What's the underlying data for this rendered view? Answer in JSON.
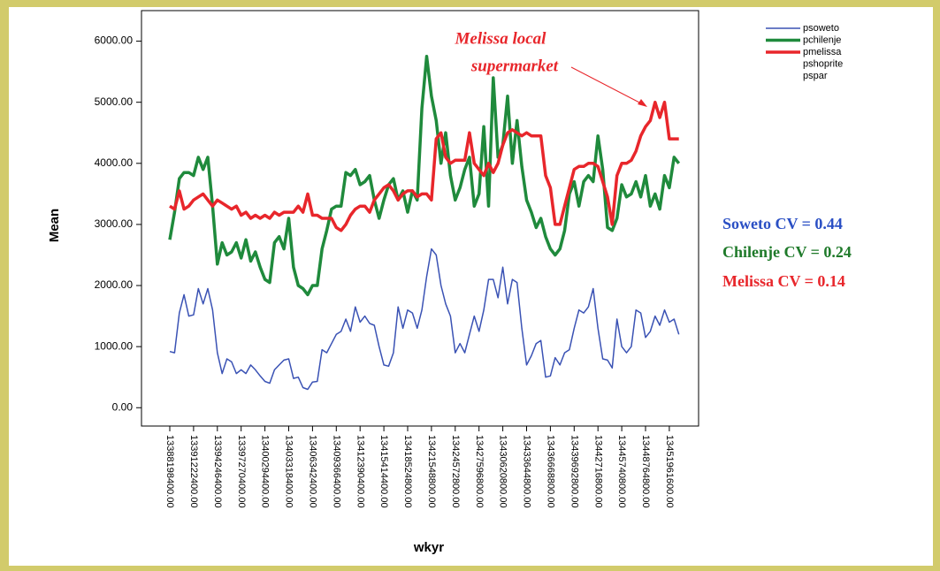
{
  "chart_data": {
    "type": "line",
    "xlabel": "wkyr",
    "ylabel": "Mean",
    "categories": [
      "13388198400.00",
      null,
      null,
      null,
      null,
      "13391222400.00",
      null,
      null,
      null,
      null,
      "13394246400.00",
      null,
      null,
      null,
      null,
      "13397270400.00",
      null,
      null,
      null,
      null,
      "13400294400.00",
      null,
      null,
      null,
      null,
      "13403318400.00",
      null,
      null,
      null,
      null,
      "13406342400.00",
      null,
      null,
      null,
      null,
      "13409366400.00",
      null,
      null,
      null,
      null,
      "13412390400.00",
      null,
      null,
      null,
      null,
      "13415414400.00",
      null,
      null,
      null,
      null,
      "13418524800.00",
      null,
      null,
      null,
      null,
      "13421548800.00",
      null,
      null,
      null,
      null,
      "13424572800.00",
      null,
      null,
      null,
      null,
      "13427596800.00",
      null,
      null,
      null,
      null,
      "13430620800.00",
      null,
      null,
      null,
      null,
      "13433644800.00",
      null,
      null,
      null,
      null,
      "13436668800.00",
      null,
      null,
      null,
      null,
      "13439692800.00",
      null,
      null,
      null,
      null,
      "13442716800.00",
      null,
      null,
      null,
      null,
      "13445740800.00",
      null,
      null,
      null,
      null,
      "13448764800.00",
      null,
      null,
      null,
      null,
      "13451961600.00",
      null,
      null
    ],
    "series": [
      {
        "name": "psoweto",
        "color": "#3a52b4",
        "width": 1.5,
        "values": [
          920,
          900,
          1550,
          1850,
          1500,
          1520,
          1950,
          1700,
          1950,
          1600,
          900,
          560,
          800,
          750,
          560,
          620,
          560,
          700,
          620,
          520,
          430,
          400,
          620,
          700,
          780,
          800,
          480,
          500,
          330,
          300,
          420,
          430,
          950,
          900,
          1050,
          1200,
          1250,
          1450,
          1250,
          1650,
          1400,
          1500,
          1380,
          1350,
          1000,
          700,
          680,
          900,
          1650,
          1300,
          1600,
          1550,
          1300,
          1600,
          2150,
          2600,
          2500,
          2000,
          1700,
          1500,
          900,
          1050,
          900,
          1200,
          1500,
          1250,
          1600,
          2100,
          2100,
          1800,
          2300,
          1700,
          2100,
          2050,
          1300,
          700,
          850,
          1050,
          1100,
          500,
          520,
          820,
          700,
          900,
          950,
          1300,
          1600,
          1550,
          1650,
          1950,
          1300,
          800,
          780,
          650,
          1450,
          1000,
          900,
          1000,
          1600,
          1550,
          1150,
          1250,
          1500,
          1350,
          1600,
          1400,
          1450,
          1200
        ]
      },
      {
        "name": "pchilenje",
        "color": "#1f8a3c",
        "width": 3.5,
        "values": [
          2750,
          3200,
          3750,
          3850,
          3850,
          3800,
          4100,
          3900,
          4100,
          3300,
          2350,
          2700,
          2500,
          2550,
          2700,
          2450,
          2750,
          2400,
          2550,
          2300,
          2100,
          2050,
          2700,
          2800,
          2600,
          3100,
          2300,
          2000,
          1950,
          1850,
          2000,
          2000,
          2600,
          2900,
          3250,
          3300,
          3300,
          3850,
          3800,
          3900,
          3650,
          3700,
          3800,
          3400,
          3100,
          3400,
          3650,
          3750,
          3400,
          3550,
          3200,
          3550,
          3400,
          4900,
          5750,
          5100,
          4700,
          4000,
          4500,
          3800,
          3400,
          3600,
          3900,
          4100,
          3300,
          3500,
          4600,
          3300,
          5400,
          4100,
          4300,
          5100,
          4000,
          4700,
          3950,
          3400,
          3200,
          2950,
          3100,
          2800,
          2600,
          2500,
          2600,
          2900,
          3500,
          3700,
          3300,
          3700,
          3800,
          3700,
          4450,
          3900,
          2950,
          2900,
          3100,
          3650,
          3450,
          3500,
          3700,
          3450,
          3800,
          3300,
          3500,
          3250,
          3800,
          3600,
          4100,
          4000
        ]
      },
      {
        "name": "pmelissa",
        "color": "#e8262b",
        "width": 3.5,
        "values": [
          3300,
          3250,
          3550,
          3250,
          3300,
          3400,
          3450,
          3500,
          3400,
          3300,
          3400,
          3350,
          3300,
          3250,
          3300,
          3150,
          3200,
          3100,
          3150,
          3100,
          3150,
          3100,
          3200,
          3150,
          3200,
          3200,
          3200,
          3300,
          3200,
          3500,
          3150,
          3150,
          3100,
          3100,
          3100,
          2950,
          2900,
          3000,
          3150,
          3250,
          3300,
          3300,
          3200,
          3400,
          3500,
          3600,
          3650,
          3550,
          3400,
          3500,
          3550,
          3550,
          3450,
          3500,
          3500,
          3400,
          4400,
          4500,
          4100,
          4000,
          4050,
          4050,
          4050,
          4500,
          4000,
          3900,
          3800,
          4000,
          3850,
          4000,
          4300,
          4500,
          4550,
          4500,
          4450,
          4500,
          4450,
          4450,
          4450,
          3800,
          3600,
          3000,
          3000,
          3300,
          3600,
          3900,
          3950,
          3950,
          4000,
          4000,
          3950,
          3700,
          3450,
          3000,
          3800,
          4000,
          4000,
          4050,
          4200,
          4450,
          4600,
          4700,
          5000,
          4750,
          5000,
          4400,
          4400,
          4400
        ]
      }
    ],
    "extra_legend": [
      "pshoprite",
      "pspar"
    ],
    "ylim": [
      -300,
      6500
    ],
    "yticks": [
      {
        "value": 0,
        "label": "0.00"
      },
      {
        "value": 1000,
        "label": "1000.00"
      },
      {
        "value": 2000,
        "label": "2000.00"
      },
      {
        "value": 3000,
        "label": "3000.00"
      },
      {
        "value": 4000,
        "label": "4000.00"
      },
      {
        "value": 5000,
        "label": "5000.00"
      },
      {
        "value": 6000,
        "label": "6000.00"
      }
    ],
    "annotations": [
      {
        "text": "Melissa local",
        "color": "#e8262b"
      },
      {
        "text": "supermarket",
        "color": "#e8262b"
      },
      {
        "text": "Soweto CV = 0.44",
        "color": "#2a4fc4"
      },
      {
        "text": "Chilenje CV = 0.24",
        "color": "#1f7a2a"
      },
      {
        "text": "Melissa CV = 0.14",
        "color": "#e8262b"
      }
    ]
  }
}
